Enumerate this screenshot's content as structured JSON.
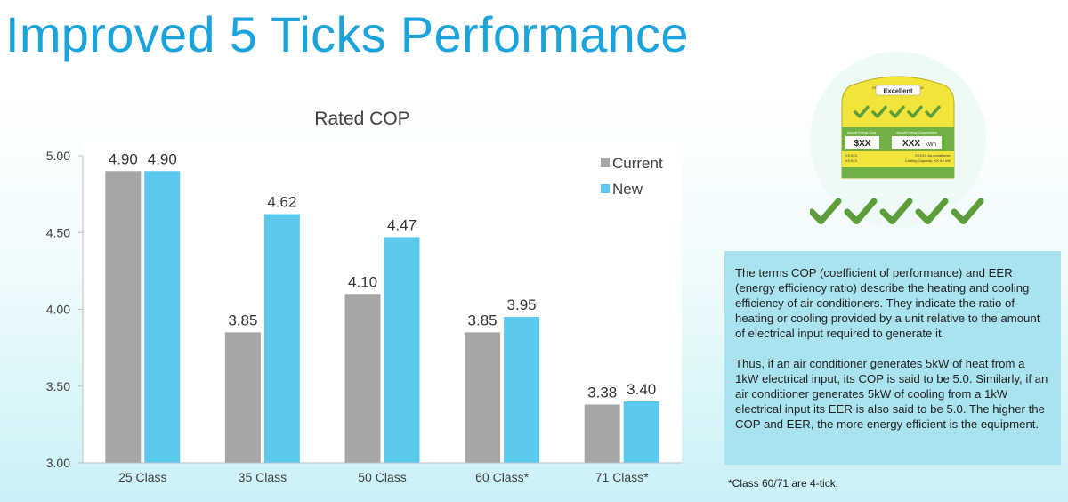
{
  "page": {
    "title": "Improved 5 Ticks Performance"
  },
  "chart_data": {
    "type": "bar",
    "title": "Rated COP",
    "categories": [
      "25 Class",
      "35 Class",
      "50 Class",
      "60 Class*",
      "71 Class*"
    ],
    "series": [
      {
        "name": "Current",
        "values": [
          4.9,
          3.85,
          4.1,
          3.85,
          3.38
        ],
        "labels": [
          "4.90",
          "3.85",
          "4.10",
          "3.85",
          "3.38"
        ],
        "color": "#a6a6a6"
      },
      {
        "name": "New",
        "values": [
          4.9,
          4.62,
          4.47,
          3.95,
          3.4
        ],
        "labels": [
          "4.90",
          "4.62",
          "4.47",
          "3.95",
          "3.40"
        ],
        "color": "#5bc8ee"
      }
    ],
    "ylim": [
      3.0,
      5.0
    ],
    "yticks": [
      "3.00",
      "3.50",
      "4.00",
      "4.50",
      "5.00"
    ],
    "grid": false,
    "legend": "top-right"
  },
  "energy_label": {
    "header": "ENERGY EFFICIENCY RATING",
    "rating": "Excellent",
    "cost_label": "Annual Energy Cost",
    "consumption_label": "Annual Energy Consumption",
    "cost_value": "$XX",
    "consumption_value": "XXX",
    "consumption_unit": "kWh",
    "model_left": "XXXXX",
    "model_left_2": "XXXXX",
    "product": "XXXXX Air-conditioner",
    "capacity": "Cooling Capacity: XX.XX kW",
    "tick_color": "#5d9e3b",
    "label_color": "#f2e43a"
  },
  "explanation": {
    "paragraph1": "The terms COP (coefficient of performance) and EER (energy efficiency ratio) describe the heating and cooling efficiency of air conditioners. They indicate the ratio of heating or cooling provided by a unit relative to the amount of electrical input required to generate it.",
    "paragraph2": "Thus, if an air conditioner generates 5kW of heat from a 1kW electrical input, its COP is said to be 5.0. Similarly, if an air conditioner generates 5kW of cooling from a 1kW electrical input its EER is also said to be 5.0. The higher the COP and EER, the more energy efficient is the equipment."
  },
  "footnote": "*Class 60/71 are 4-tick."
}
